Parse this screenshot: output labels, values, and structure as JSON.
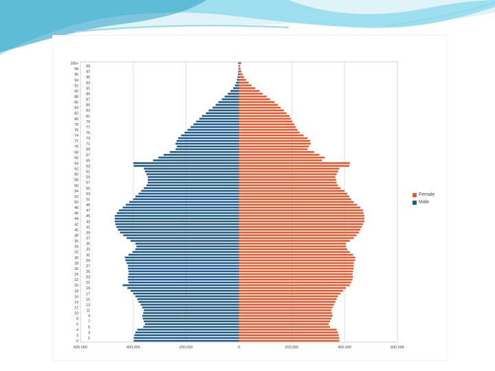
{
  "colors": {
    "female": "#e8582c",
    "male": "#1f5a8c",
    "banner_light": "#dff3f8",
    "banner_mid": "#7fd3e6",
    "banner_dark": "#2a9fc4"
  },
  "chart_data": {
    "type": "bar",
    "orientation": "horizontal-population-pyramid",
    "title": "",
    "xlabel": "",
    "ylabel": "",
    "xlim": [
      -600000,
      600000
    ],
    "x_ticks": [
      "600,000",
      "400,000",
      "200,000",
      "0",
      "200,000",
      "400,000",
      "600,000"
    ],
    "x_tick_values": [
      -600000,
      -400000,
      -200000,
      0,
      200000,
      400000,
      600000
    ],
    "grid": true,
    "legend_position": "right",
    "categories_left": [
      "100+",
      "98",
      "96",
      "94",
      "92",
      "90",
      "88",
      "86",
      "84",
      "82",
      "80",
      "78",
      "76",
      "74",
      "72",
      "70",
      "68",
      "66",
      "64",
      "62",
      "60",
      "58",
      "56",
      "54",
      "52",
      "50",
      "48",
      "46",
      "44",
      "42",
      "40",
      "38",
      "36",
      "34",
      "32",
      "30",
      "28",
      "26",
      "24",
      "22",
      "20",
      "18",
      "16",
      "14",
      "12",
      "10",
      "8",
      "6",
      "4",
      "2",
      "0"
    ],
    "categories_right": [
      "99",
      "97",
      "95",
      "93",
      "91",
      "89",
      "87",
      "85",
      "83",
      "81",
      "79",
      "77",
      "75",
      "73",
      "71",
      "69",
      "67",
      "65",
      "63",
      "61",
      "59",
      "57",
      "55",
      "53",
      "51",
      "49",
      "47",
      "45",
      "43",
      "41",
      "39",
      "37",
      "35",
      "33",
      "31",
      "29",
      "27",
      "25",
      "23",
      "21",
      "19",
      "17",
      "15",
      "13",
      "11",
      "9",
      "7",
      "5",
      "3",
      "1"
    ],
    "ages": [
      0,
      1,
      2,
      3,
      4,
      5,
      6,
      7,
      8,
      9,
      10,
      11,
      12,
      13,
      14,
      15,
      16,
      17,
      18,
      19,
      20,
      21,
      22,
      23,
      24,
      25,
      26,
      27,
      28,
      29,
      30,
      31,
      32,
      33,
      34,
      35,
      36,
      37,
      38,
      39,
      40,
      41,
      42,
      43,
      44,
      45,
      46,
      47,
      48,
      49,
      50,
      51,
      52,
      53,
      54,
      55,
      56,
      57,
      58,
      59,
      60,
      61,
      62,
      63,
      64,
      65,
      66,
      67,
      68,
      69,
      70,
      71,
      72,
      73,
      74,
      75,
      76,
      77,
      78,
      79,
      80,
      81,
      82,
      83,
      84,
      85,
      86,
      87,
      88,
      89,
      90,
      91,
      92,
      93,
      94,
      95,
      96,
      97,
      98,
      99,
      100
    ],
    "series": [
      {
        "name": "Female",
        "values": [
          380000,
          380000,
          378000,
          375000,
          370000,
          345000,
          340000,
          345000,
          350000,
          355000,
          352000,
          350000,
          355000,
          360000,
          365000,
          370000,
          375000,
          385000,
          395000,
          405000,
          420000,
          425000,
          430000,
          432000,
          430000,
          432000,
          435000,
          435000,
          435000,
          440000,
          440000,
          432000,
          420000,
          410000,
          405000,
          405000,
          420000,
          435000,
          445000,
          455000,
          460000,
          465000,
          470000,
          475000,
          475000,
          475000,
          472000,
          470000,
          460000,
          448000,
          435000,
          425000,
          418000,
          410000,
          400000,
          385000,
          375000,
          370000,
          368000,
          365000,
          370000,
          375000,
          380000,
          418000,
          420000,
          315000,
          325000,
          305000,
          285000,
          260000,
          265000,
          272000,
          270000,
          260000,
          245000,
          230000,
          222000,
          215000,
          210000,
          202000,
          197000,
          192000,
          180000,
          170000,
          158000,
          148000,
          135000,
          118000,
          105000,
          90000,
          78000,
          62000,
          48000,
          37000,
          27000,
          20000,
          14000,
          9500,
          6500,
          4500,
          9000
        ],
        "color": "#e8582c"
      },
      {
        "name": "Male",
        "values": [
          398000,
          398000,
          396000,
          392000,
          385000,
          362000,
          356000,
          360000,
          364000,
          366000,
          362000,
          360000,
          366000,
          372000,
          380000,
          385000,
          392000,
          400000,
          410000,
          422000,
          440000,
          418000,
          420000,
          420000,
          418000,
          418000,
          420000,
          420000,
          425000,
          430000,
          432000,
          418000,
          403000,
          392000,
          388000,
          392000,
          410000,
          425000,
          438000,
          450000,
          458000,
          464000,
          468000,
          470000,
          470000,
          470000,
          462000,
          455000,
          440000,
          428000,
          415000,
          400000,
          392000,
          380000,
          370000,
          360000,
          350000,
          345000,
          345000,
          345000,
          350000,
          356000,
          360000,
          398000,
          400000,
          325000,
          305000,
          285000,
          262000,
          240000,
          235000,
          240000,
          236000,
          230000,
          219000,
          206000,
          195000,
          183000,
          172000,
          162000,
          150000,
          140000,
          125000,
          115000,
          100000,
          88000,
          78000,
          65000,
          54000,
          42000,
          32000,
          22000,
          15000,
          10000,
          7000,
          5000,
          3500,
          2500,
          1800,
          1200,
          3000
        ],
        "color": "#1f5a8c"
      }
    ]
  },
  "legend": {
    "items": [
      {
        "label": "Female",
        "color": "#e8582c"
      },
      {
        "label": "Male",
        "color": "#1f5a8c"
      }
    ]
  }
}
